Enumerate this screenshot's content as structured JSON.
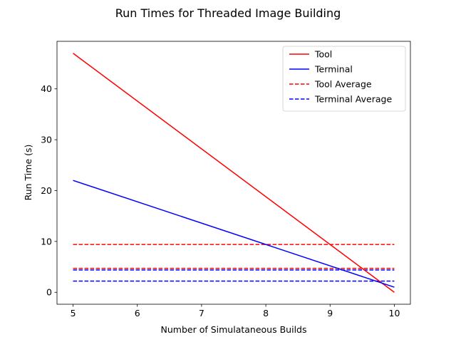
{
  "chart_data": {
    "type": "line",
    "title": "Run Times for Threaded Image Building",
    "xlabel": "Number of Simulataneous Builds",
    "ylabel": "Run Time (s)",
    "xlim": [
      4.75,
      10.25
    ],
    "ylim": [
      -2.35,
      49.35
    ],
    "xticks": [
      5,
      6,
      7,
      8,
      9,
      10
    ],
    "yticks": [
      0,
      10,
      20,
      30,
      40
    ],
    "grid": false,
    "legend_position": "top-right",
    "series": [
      {
        "name": "Tool",
        "color": "#ff0000",
        "style": "solid",
        "x": [
          5,
          10
        ],
        "y": [
          47.0,
          0.0
        ]
      },
      {
        "name": "Terminal",
        "color": "#0000ff",
        "style": "solid",
        "x": [
          5,
          10
        ],
        "y": [
          22.0,
          1.0
        ]
      }
    ],
    "reference_lines": [
      {
        "name": "Tool Average",
        "color": "#ff0000",
        "style": "dashed",
        "x": [
          5,
          10
        ],
        "y": 9.4
      },
      {
        "name": "",
        "color": "#ff0000",
        "style": "dashed",
        "x": [
          5,
          10
        ],
        "y": 4.7
      },
      {
        "name": "Terminal Average",
        "color": "#0000ff",
        "style": "dashed",
        "x": [
          5,
          10
        ],
        "y": 4.4
      },
      {
        "name": "",
        "color": "#0000ff",
        "style": "dashed",
        "x": [
          5,
          10
        ],
        "y": 2.2
      }
    ],
    "legend": [
      "Tool",
      "Terminal",
      "Tool Average",
      "Terminal Average"
    ]
  }
}
